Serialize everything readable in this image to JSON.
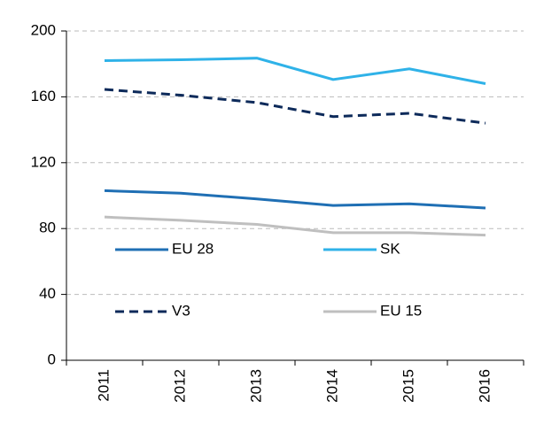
{
  "chart_data": {
    "type": "line",
    "categories": [
      "2011",
      "2012",
      "2013",
      "2014",
      "2015",
      "2016"
    ],
    "series": [
      {
        "name": "EU 28",
        "color": "#1f6fb4",
        "dashed": false,
        "values": [
          103,
          101.5,
          98,
          94,
          95,
          92.5
        ]
      },
      {
        "name": "SK",
        "color": "#2fb2e8",
        "dashed": false,
        "values": [
          182,
          182.5,
          183.5,
          170.5,
          177,
          168
        ]
      },
      {
        "name": "V3",
        "color": "#0d2a5a",
        "dashed": true,
        "values": [
          164.5,
          161,
          156.5,
          148,
          150,
          144
        ]
      },
      {
        "name": "EU 15",
        "color": "#bfbfbf",
        "dashed": false,
        "values": [
          87,
          85,
          82.5,
          77.5,
          77.5,
          76
        ]
      }
    ],
    "ylim": [
      0,
      200
    ],
    "yticks": [
      0,
      40,
      80,
      120,
      160,
      200
    ],
    "grid": true
  }
}
